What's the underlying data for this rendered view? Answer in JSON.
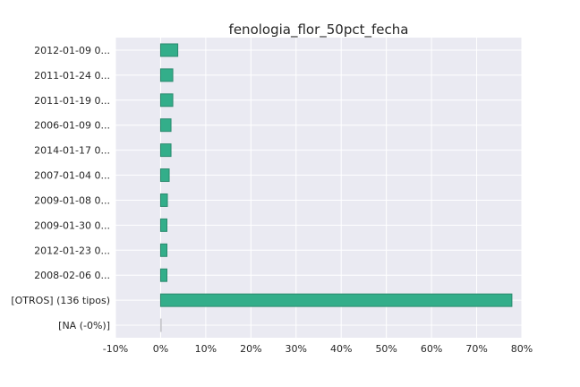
{
  "chart_data": {
    "type": "bar",
    "orientation": "horizontal",
    "title": "fenologia_flor_50pct_fecha",
    "xlabel": "",
    "ylabel": "",
    "categories": [
      "2012-01-09 0...",
      "2011-01-24 0...",
      "2011-01-19 0...",
      "2006-01-09 0...",
      "2014-01-17 0...",
      "2007-01-04 0...",
      "2009-01-08 0...",
      "2009-01-30 0...",
      "2012-01-23 0...",
      "2008-02-06 0...",
      "[OTROS] (136 tipos)",
      "[NA (-0%)]"
    ],
    "values": [
      3.8,
      2.7,
      2.7,
      2.3,
      2.3,
      1.9,
      1.5,
      1.4,
      1.4,
      1.4,
      77.8,
      0.0
    ],
    "xlim": [
      -10,
      80
    ],
    "xticks": [
      -10,
      0,
      10,
      20,
      30,
      40,
      50,
      60,
      70,
      80
    ],
    "xtick_labels": [
      "-10%",
      "0%",
      "10%",
      "20%",
      "30%",
      "40%",
      "50%",
      "60%",
      "70%",
      "80%"
    ],
    "grid": true,
    "legend": "none",
    "colors": {
      "bar_fill": "#33ae8a",
      "bar_edge": "#2a8a6e",
      "plot_background": "#eaeaf2",
      "grid": "#ffffff",
      "text": "#262626"
    }
  }
}
